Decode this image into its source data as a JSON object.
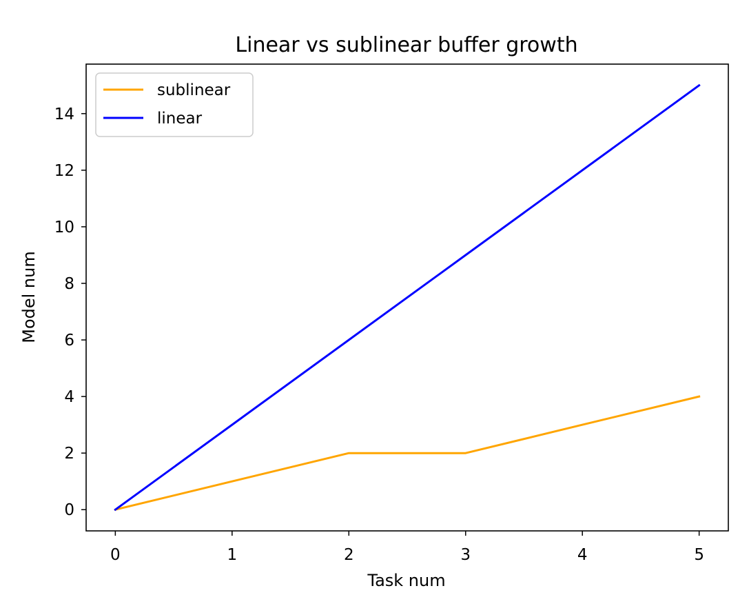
{
  "chart_data": {
    "type": "line",
    "title": "Linear vs sublinear buffer growth",
    "xlabel": "Task num",
    "ylabel": "Model num",
    "x": [
      0,
      1,
      2,
      3,
      4,
      5
    ],
    "xlim": [
      -0.25,
      5.25
    ],
    "ylim": [
      -0.75,
      15.75
    ],
    "xticks": [
      0,
      1,
      2,
      3,
      4,
      5
    ],
    "yticks": [
      0,
      2,
      4,
      6,
      8,
      10,
      12,
      14
    ],
    "grid": false,
    "legend_position": "upper-left",
    "series": [
      {
        "name": "sublinear",
        "values": [
          0,
          1,
          2,
          2,
          3,
          4
        ],
        "color": "#ffa500"
      },
      {
        "name": "linear",
        "values": [
          0,
          3,
          6,
          9,
          12,
          15
        ],
        "color": "#0000ff"
      }
    ]
  }
}
